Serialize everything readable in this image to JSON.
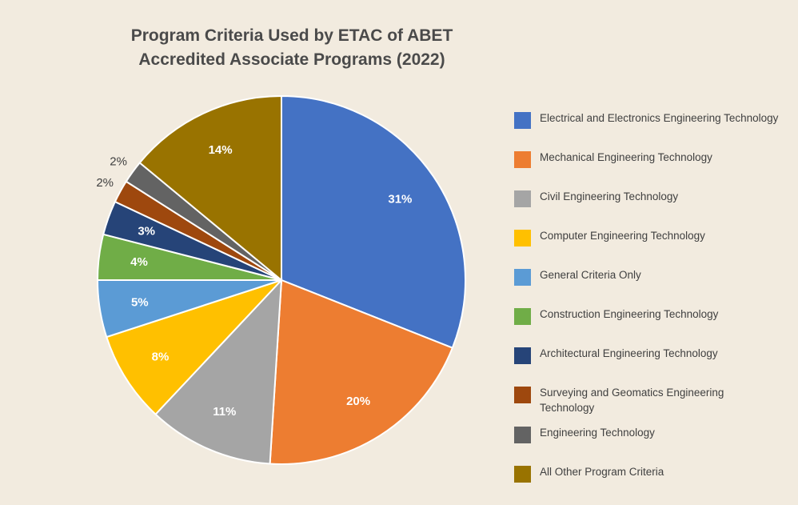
{
  "chart_data": {
    "type": "pie",
    "title": "Program Criteria Used by ETAC of ABET Accredited Associate Programs (2022)",
    "title_lines": [
      "Program Criteria Used by ETAC of ABET",
      "Accredited Associate Programs (2022)"
    ],
    "legend_position": "right",
    "slices": [
      {
        "label": "Electrical and Electronics Engineering Technology",
        "value": 31,
        "display": "31%",
        "color": "#4472c4"
      },
      {
        "label": "Mechanical Engineering Technology",
        "value": 20,
        "display": "20%",
        "color": "#ed7d31"
      },
      {
        "label": "Civil Engineering Technology",
        "value": 11,
        "display": "11%",
        "color": "#a5a5a5"
      },
      {
        "label": "Computer Engineering Technology",
        "value": 8,
        "display": "8%",
        "color": "#ffc000"
      },
      {
        "label": "General Criteria Only",
        "value": 5,
        "display": "5%",
        "color": "#5b9bd5"
      },
      {
        "label": "Construction Engineering Technology",
        "value": 4,
        "display": "4%",
        "color": "#70ad47"
      },
      {
        "label": "Architectural Engineering Technology",
        "value": 3,
        "display": "3%",
        "color": "#264478"
      },
      {
        "label": "Surveying and Geomatics Engineering Technology",
        "value": 2,
        "display": "2%",
        "color": "#9e480e"
      },
      {
        "label": "Engineering Technology",
        "value": 2,
        "display": "2%",
        "color": "#636363"
      },
      {
        "label": "All Other Program Criteria",
        "value": 14,
        "display": "14%",
        "color": "#997300"
      }
    ]
  }
}
